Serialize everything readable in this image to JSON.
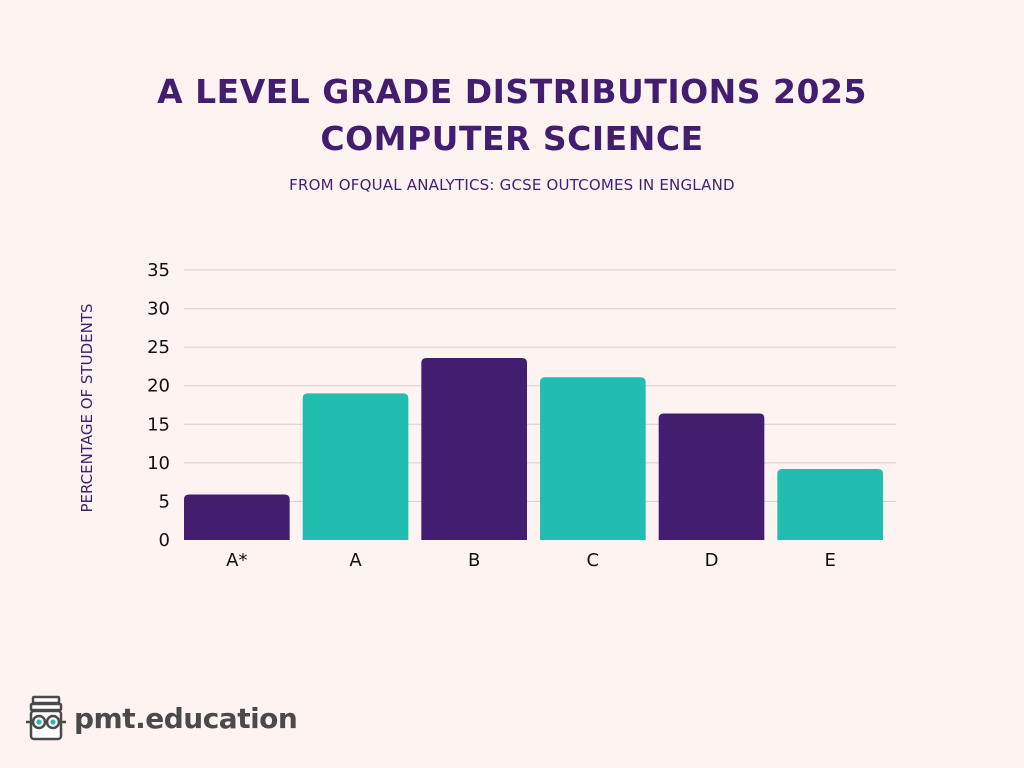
{
  "header": {
    "title_line1": "A LEVEL GRADE DISTRIBUTIONS 2025",
    "title_line2": "COMPUTER SCIENCE",
    "subtitle": "FROM OFQUAL ANALYTICS: GCSE OUTCOMES IN ENGLAND"
  },
  "brand": {
    "name": "pmt.education",
    "icon": "pmt-mascot-icon"
  },
  "colors": {
    "background": "#fdf3f1",
    "text": "#431d6f",
    "bar_purple": "#431d6f",
    "bar_teal": "#22bdb1",
    "grid": "#d9cdcd"
  },
  "chart_data": {
    "type": "bar",
    "categories": [
      "A*",
      "A",
      "B",
      "C",
      "D",
      "E"
    ],
    "values": [
      5.9,
      19.0,
      23.6,
      21.1,
      16.4,
      9.2
    ],
    "bar_colors": [
      "#431d6f",
      "#22bdb1",
      "#431d6f",
      "#22bdb1",
      "#431d6f",
      "#22bdb1"
    ],
    "title": "A LEVEL GRADE DISTRIBUTIONS 2025 COMPUTER SCIENCE",
    "subtitle": "FROM OFQUAL ANALYTICS: GCSE OUTCOMES IN ENGLAND",
    "xlabel": "",
    "ylabel": "PERCENTAGE OF STUDENTS",
    "ylim": [
      0,
      35
    ],
    "yticks": [
      0,
      5,
      10,
      15,
      20,
      25,
      30,
      35
    ],
    "grid": true,
    "legend": "none"
  }
}
